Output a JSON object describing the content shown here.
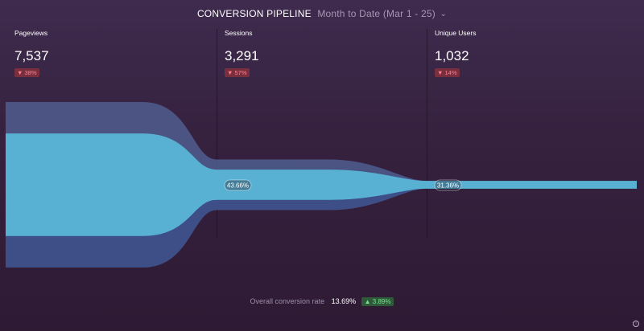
{
  "header": {
    "title": "CONVERSION PIPELINE",
    "range": "Month to Date (Mar 1 - 25)",
    "chevron": "chevron-down-icon"
  },
  "chart_data": {
    "type": "funnel",
    "stages": [
      {
        "name": "Pageviews",
        "value": "7,537",
        "change": "▼ 38%",
        "change_direction": "down"
      },
      {
        "name": "Sessions",
        "value": "3,291",
        "change": "▼ 57%",
        "change_direction": "down",
        "conversion": "43.66%"
      },
      {
        "name": "Unique Users",
        "value": "1,032",
        "change": "▼ 14%",
        "change_direction": "down",
        "conversion": "31.36%"
      }
    ],
    "values_numeric": [
      7537,
      3291,
      1032
    ]
  },
  "footer": {
    "label": "Overall conversion rate",
    "rate": "13.69%",
    "change": "▲ 3.89%"
  },
  "colors": {
    "band_outer": "#4f5d8e",
    "band_inner": "#59b6d6",
    "band_lower": "#3d4f88",
    "negative": "#ff7f8f",
    "positive": "#78e08f"
  }
}
